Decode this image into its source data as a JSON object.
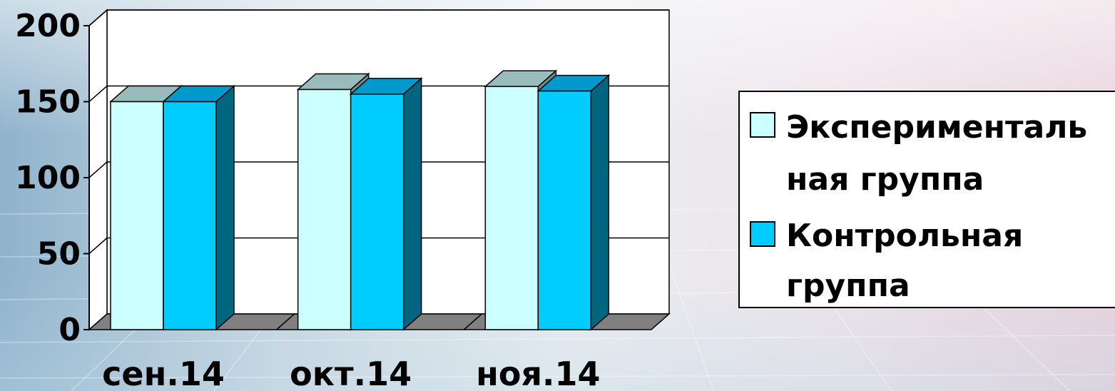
{
  "chart_data": {
    "type": "bar",
    "categories": [
      "сен.14",
      "окт.14",
      "ноя.14"
    ],
    "series": [
      {
        "name": "Экспериментальная группа",
        "legend_lines": [
          "Эксперименталь",
          "ная группа"
        ],
        "values": [
          150,
          158,
          160
        ],
        "color": "#ccffff",
        "top_color": "#99bbbb"
      },
      {
        "name": "Контрольная группа",
        "legend_lines": [
          "Контрольная",
          "группа"
        ],
        "values": [
          150,
          155,
          157
        ],
        "color": "#00ccff",
        "top_color": "#0099cc",
        "side_color": "#006680"
      }
    ],
    "y_ticks": [
      "0",
      "50",
      "100",
      "150",
      "200"
    ],
    "ylim": [
      0,
      200
    ],
    "grid": true,
    "legend_position": "right",
    "three_d": true,
    "floor_color": "#808080"
  }
}
